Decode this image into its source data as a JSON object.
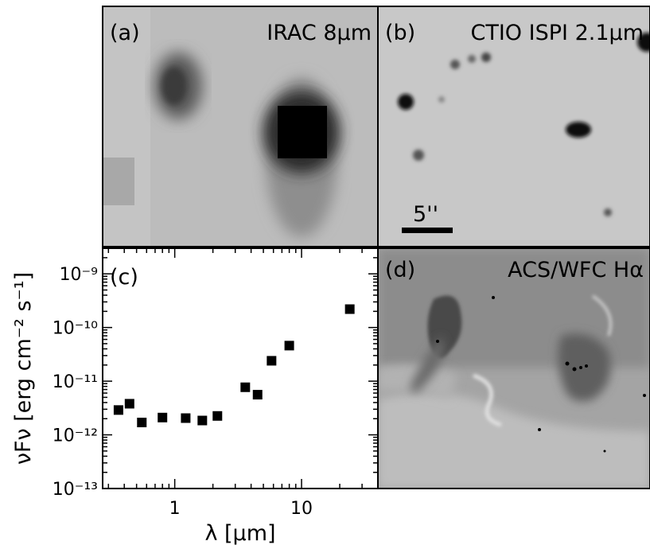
{
  "panels": {
    "a": {
      "tag": "(a)",
      "label": "IRAC 8μm"
    },
    "b": {
      "tag": "(b)",
      "label": "CTIO ISPI 2.1μm",
      "scalebar_label": "5''"
    },
    "d": {
      "tag": "(d)",
      "label": "ACS/WFC Hα"
    }
  },
  "chart_data": {
    "type": "scatter",
    "panel_tag": "(c)",
    "xlabel": "λ [μm]",
    "ylabel": "νFν [erg cm⁻² s⁻¹]",
    "xscale": "log",
    "yscale": "log",
    "xlim": [
      0.27,
      40
    ],
    "ylim": [
      1e-13,
      3e-09
    ],
    "x_tick_labels": [
      {
        "value": 1,
        "label": "1"
      },
      {
        "value": 10,
        "label": "10"
      }
    ],
    "y_tick_labels": [
      {
        "value": 1e-13,
        "label": "10⁻¹³"
      },
      {
        "value": 1e-12,
        "label": "10⁻¹²"
      },
      {
        "value": 1e-11,
        "label": "10⁻¹¹"
      },
      {
        "value": 1e-10,
        "label": "10⁻¹⁰"
      },
      {
        "value": 1e-09,
        "label": "10⁻⁹"
      }
    ],
    "grid": false,
    "marker": "filled-square",
    "points": [
      {
        "x": 0.36,
        "y": 2.9e-12
      },
      {
        "x": 0.44,
        "y": 3.8e-12
      },
      {
        "x": 0.55,
        "y": 1.7e-12
      },
      {
        "x": 0.8,
        "y": 2.1e-12
      },
      {
        "x": 1.22,
        "y": 2.05e-12
      },
      {
        "x": 1.65,
        "y": 1.85e-12
      },
      {
        "x": 2.17,
        "y": 2.25e-12
      },
      {
        "x": 3.6,
        "y": 7.7e-12
      },
      {
        "x": 4.5,
        "y": 5.6e-12
      },
      {
        "x": 5.8,
        "y": 2.4e-11
      },
      {
        "x": 8.0,
        "y": 4.6e-11
      },
      {
        "x": 24.0,
        "y": 2.2e-10
      }
    ]
  }
}
